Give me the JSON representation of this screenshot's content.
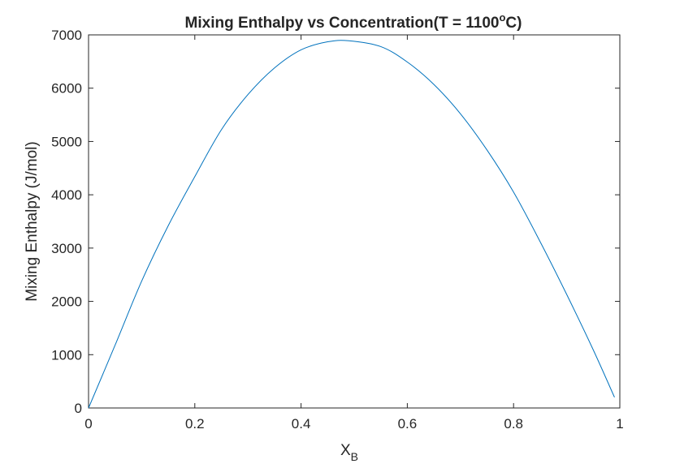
{
  "chart_data": {
    "type": "line",
    "title": {
      "prefix": "Mixing Enthalpy vs Concentration(T = 1100",
      "superscript": "o",
      "suffix": "C)"
    },
    "xlabel": {
      "base": "X",
      "subscript": "B"
    },
    "ylabel": "Mixing Enthalpy (J/mol)",
    "xlim": [
      0,
      1
    ],
    "ylim": [
      0,
      7000
    ],
    "x_ticks": [
      "0",
      "0.2",
      "0.4",
      "0.6",
      "0.8",
      "1"
    ],
    "y_ticks": [
      "0",
      "1000",
      "2000",
      "3000",
      "4000",
      "5000",
      "6000",
      "7000"
    ],
    "grid": false,
    "line_color": "#0072BD",
    "series": [
      {
        "x": [
          0.0,
          0.05,
          0.1,
          0.15,
          0.2,
          0.25,
          0.3,
          0.35,
          0.4,
          0.45,
          0.49,
          0.55,
          0.6,
          0.65,
          0.7,
          0.75,
          0.8,
          0.85,
          0.9,
          0.95,
          0.99
        ],
        "y": [
          0,
          1180,
          2380,
          3420,
          4340,
          5220,
          5880,
          6380,
          6720,
          6870,
          6890,
          6780,
          6490,
          6070,
          5520,
          4840,
          4050,
          3120,
          2130,
          1090,
          200
        ]
      }
    ]
  }
}
